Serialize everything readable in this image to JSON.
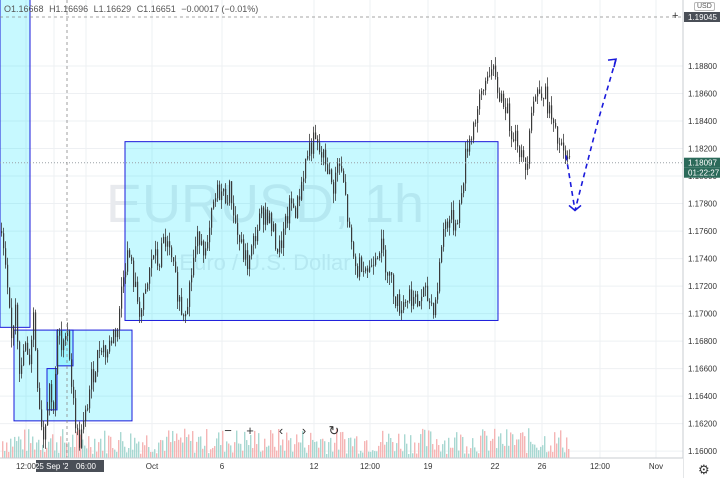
{
  "ohlc": {
    "open": "O1.16668",
    "high": "H1.16696",
    "low": "L1.16629",
    "close": "C1.16651",
    "change": "−0.00017 (−0.01%)"
  },
  "currency": "USD",
  "watermark": {
    "symbol": "EURUSD, 1h",
    "description": "Euro / U.S. Dollar"
  },
  "price_badges": {
    "last_price": "1.18097",
    "countdown": "01:22:27",
    "top_price": "1.19045"
  },
  "nav_buttons": {
    "zoom_out": "−",
    "zoom_in": "+",
    "scroll_left": "‹",
    "scroll_right": "›",
    "reset": "↻"
  },
  "colors": {
    "up_candle": "#26a69a",
    "down_candle": "#ef5350",
    "candle": "#3a3a3a",
    "zone_fill": "#00e5ff",
    "zone_border": "#1a1adb",
    "projection": "#1a1adb"
  },
  "chart_data": {
    "type": "candlestick",
    "symbol": "EURUSD",
    "timeframe": "1h",
    "y_ticks": [
      "1.16000",
      "1.16200",
      "1.16400",
      "1.16600",
      "1.16800",
      "1.17000",
      "1.17200",
      "1.17400",
      "1.17600",
      "1.17800",
      "1.18000",
      "1.18200",
      "1.18400",
      "1.18600",
      "1.18800"
    ],
    "x_ticks": [
      "12:00",
      "25 Sep '20",
      "06:00",
      "Oct",
      "6",
      "12",
      "12:00",
      "19",
      "22",
      "26",
      "12:00",
      "Nov"
    ],
    "ylim": [
      1.1595,
      1.1928
    ],
    "price_path": [
      [
        0,
        1.176
      ],
      [
        3,
        1.1745
      ],
      [
        8,
        1.1705
      ],
      [
        11,
        1.168
      ],
      [
        15,
        1.171
      ],
      [
        20,
        1.165
      ],
      [
        24,
        1.168
      ],
      [
        28,
        1.166
      ],
      [
        33,
        1.17
      ],
      [
        38,
        1.164
      ],
      [
        43,
        1.161
      ],
      [
        49,
        1.165
      ],
      [
        52,
        1.1625
      ],
      [
        58,
        1.169
      ],
      [
        62,
        1.1665
      ],
      [
        66,
        1.17
      ],
      [
        72,
        1.164
      ],
      [
        78,
        1.1605
      ],
      [
        84,
        1.162
      ],
      [
        90,
        1.165
      ],
      [
        96,
        1.1665
      ],
      [
        100,
        1.168
      ],
      [
        106,
        1.167
      ],
      [
        112,
        1.1685
      ],
      [
        118,
        1.169
      ],
      [
        122,
        1.173
      ],
      [
        128,
        1.1745
      ],
      [
        134,
        1.172
      ],
      [
        140,
        1.17
      ],
      [
        146,
        1.1715
      ],
      [
        152,
        1.1745
      ],
      [
        158,
        1.1735
      ],
      [
        164,
        1.1755
      ],
      [
        170,
        1.174
      ],
      [
        176,
        1.172
      ],
      [
        182,
        1.17
      ],
      [
        188,
        1.1715
      ],
      [
        194,
        1.1745
      ],
      [
        200,
        1.176
      ],
      [
        206,
        1.174
      ],
      [
        212,
        1.1775
      ],
      [
        218,
        1.179
      ],
      [
        224,
        1.1785
      ],
      [
        230,
        1.179
      ],
      [
        236,
        1.176
      ],
      [
        242,
        1.1745
      ],
      [
        248,
        1.1735
      ],
      [
        254,
        1.1755
      ],
      [
        260,
        1.177
      ],
      [
        266,
        1.1775
      ],
      [
        272,
        1.176
      ],
      [
        278,
        1.1745
      ],
      [
        284,
        1.176
      ],
      [
        290,
        1.178
      ],
      [
        296,
        1.1775
      ],
      [
        302,
        1.18
      ],
      [
        308,
        1.182
      ],
      [
        314,
        1.1825
      ],
      [
        320,
        1.1815
      ],
      [
        326,
        1.181
      ],
      [
        332,
        1.179
      ],
      [
        338,
        1.181
      ],
      [
        344,
        1.179
      ],
      [
        350,
        1.175
      ],
      [
        356,
        1.173
      ],
      [
        362,
        1.174
      ],
      [
        368,
        1.173
      ],
      [
        374,
        1.1745
      ],
      [
        380,
        1.175
      ],
      [
        386,
        1.1735
      ],
      [
        392,
        1.172
      ],
      [
        398,
        1.1705
      ],
      [
        404,
        1.171
      ],
      [
        410,
        1.1715
      ],
      [
        416,
        1.1705
      ],
      [
        422,
        1.1715
      ],
      [
        428,
        1.171
      ],
      [
        434,
        1.1705
      ],
      [
        438,
        1.1725
      ],
      [
        442,
        1.176
      ],
      [
        448,
        1.177
      ],
      [
        454,
        1.1765
      ],
      [
        460,
        1.178
      ],
      [
        466,
        1.182
      ],
      [
        472,
        1.1835
      ],
      [
        478,
        1.185
      ],
      [
        484,
        1.1865
      ],
      [
        488,
        1.188
      ],
      [
        492,
        1.1875
      ],
      [
        498,
        1.186
      ],
      [
        504,
        1.1855
      ],
      [
        510,
        1.1835
      ],
      [
        516,
        1.183
      ],
      [
        522,
        1.181
      ],
      [
        526,
        1.1805
      ],
      [
        530,
        1.185
      ],
      [
        536,
        1.186
      ],
      [
        542,
        1.1865
      ],
      [
        548,
        1.185
      ],
      [
        554,
        1.183
      ],
      [
        560,
        1.182
      ],
      [
        566,
        1.181
      ],
      [
        570,
        1.181
      ]
    ],
    "zones": [
      {
        "label": "zone-left-tall",
        "price_top": 1.193,
        "price_bottom": 1.169,
        "x_start": 0,
        "x_end": 30
      },
      {
        "label": "zone-bottom-left",
        "price_top": 1.1688,
        "price_bottom": 1.1622,
        "x_start": 14,
        "x_end": 132
      },
      {
        "label": "zone-small-a",
        "price_top": 1.1688,
        "price_bottom": 1.1662,
        "x_start": 57,
        "x_end": 73
      },
      {
        "label": "zone-small-b",
        "price_top": 1.166,
        "price_bottom": 1.163,
        "x_start": 47,
        "x_end": 57
      },
      {
        "label": "zone-main",
        "price_top": 1.1825,
        "price_bottom": 1.1695,
        "x_start": 125,
        "x_end": 498
      }
    ],
    "projection": [
      [
        566,
        1.1815
      ],
      [
        575,
        1.1775
      ],
      [
        598,
        1.184
      ],
      [
        616,
        1.1885
      ]
    ],
    "grid": true,
    "last_price": 1.18097
  }
}
